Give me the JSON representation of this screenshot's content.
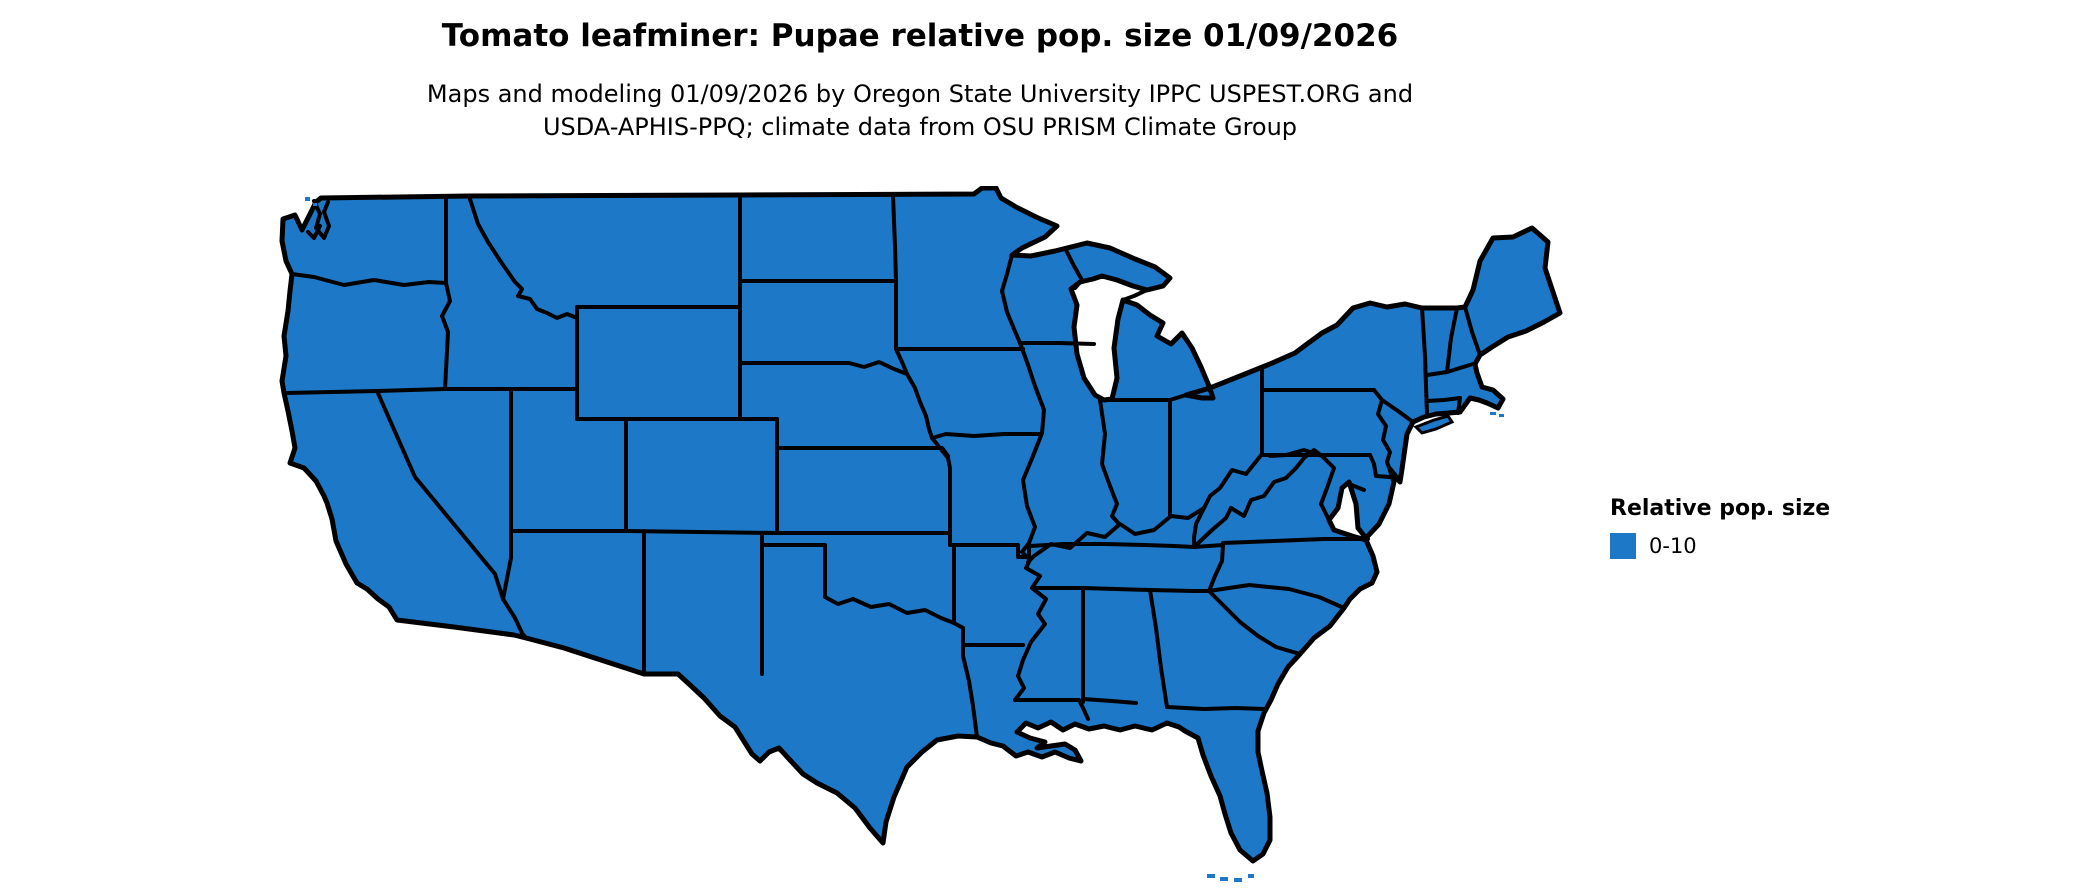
{
  "header": {
    "title": "Tomato leafminer: Pupae relative pop. size 01/09/2026",
    "subtitle_line1": "Maps and modeling 01/09/2026 by Oregon State University IPPC USPEST.ORG and",
    "subtitle_line2": "USDA-APHIS-PPQ; climate data from OSU PRISM Climate Group"
  },
  "legend": {
    "title": "Relative pop. size",
    "items": [
      {
        "label": "0-10",
        "color": "#1E78C8"
      }
    ]
  },
  "map": {
    "region": "Contiguous United States",
    "state_value": "0-10",
    "states": [
      "WA",
      "OR",
      "CA",
      "NV",
      "ID",
      "MT",
      "WY",
      "UT",
      "AZ",
      "CO",
      "NM",
      "ND",
      "SD",
      "NE",
      "KS",
      "OK",
      "TX",
      "MN",
      "IA",
      "MO",
      "AR",
      "LA",
      "WI",
      "IL",
      "MS",
      "MI",
      "IN",
      "KY",
      "TN",
      "AL",
      "GA",
      "FL",
      "OH",
      "WV",
      "VA",
      "NC",
      "SC",
      "PA",
      "NY",
      "NJ",
      "DE",
      "MD",
      "VT",
      "NH",
      "ME",
      "MA",
      "CT",
      "RI"
    ],
    "fill_color": "#1E78C8",
    "border_color": "#000000",
    "background_color": "#FFFFFF"
  }
}
